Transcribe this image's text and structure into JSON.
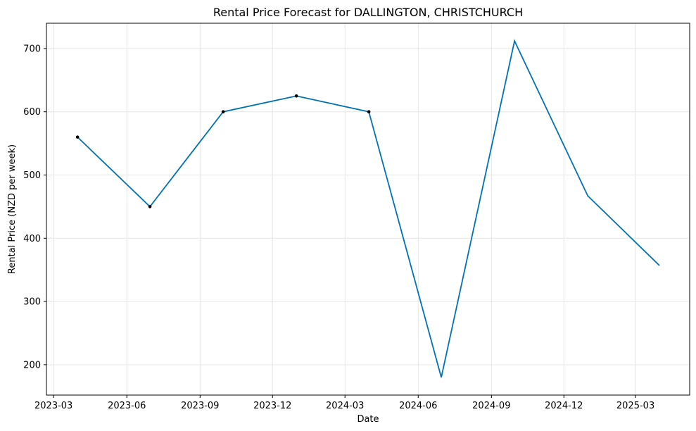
{
  "chart_data": {
    "type": "line",
    "title": "Rental Price Forecast for DALLINGTON, CHRISTCHURCH",
    "xlabel": "Date",
    "ylabel": "Rental Price (NZD per week)",
    "x_axis_type": "date",
    "xlim": [
      "2023-02-20",
      "2025-05-08"
    ],
    "ylim": [
      152,
      740
    ],
    "grid": true,
    "xticks": [
      {
        "date": "2023-03-01",
        "label": "2023-03"
      },
      {
        "date": "2023-06-01",
        "label": "2023-06"
      },
      {
        "date": "2023-09-01",
        "label": "2023-09"
      },
      {
        "date": "2023-12-01",
        "label": "2023-12"
      },
      {
        "date": "2024-03-01",
        "label": "2024-03"
      },
      {
        "date": "2024-06-01",
        "label": "2024-06"
      },
      {
        "date": "2024-09-01",
        "label": "2024-09"
      },
      {
        "date": "2024-12-01",
        "label": "2024-12"
      },
      {
        "date": "2025-03-01",
        "label": "2025-03"
      }
    ],
    "yticks": [
      200,
      300,
      400,
      500,
      600,
      700
    ],
    "series": [
      {
        "name": "",
        "kind": "forecast-line",
        "color": "#0072b2",
        "x": [
          "2023-03-31",
          "2023-06-30",
          "2023-09-30",
          "2023-12-31",
          "2024-03-31",
          "2024-06-30",
          "2024-09-30",
          "2024-12-31",
          "2025-03-31"
        ],
        "y": [
          560,
          450,
          600,
          625,
          600,
          180,
          712,
          467,
          357
        ]
      },
      {
        "name": "",
        "kind": "observed-points",
        "color": "#000000",
        "x": [
          "2023-03-31",
          "2023-06-30",
          "2023-09-30",
          "2023-12-31",
          "2024-03-31"
        ],
        "y": [
          560,
          450,
          600,
          625,
          600
        ]
      }
    ]
  }
}
